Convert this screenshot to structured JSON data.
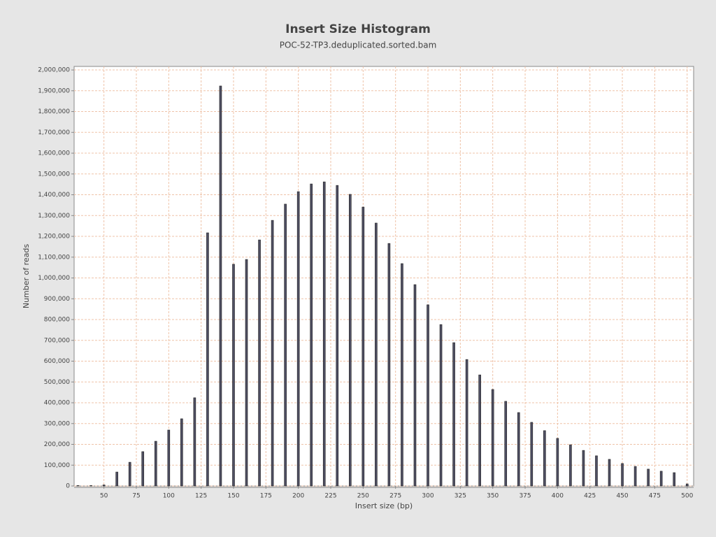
{
  "chart_data": {
    "type": "bar",
    "title": "Insert Size Histogram",
    "subtitle": "POC-52-TP3.deduplicated.sorted.bam",
    "x_label": "Insert size (bp)",
    "y_label": "Number of reads",
    "x": [
      30,
      40,
      50,
      60,
      70,
      80,
      90,
      100,
      110,
      120,
      130,
      140,
      150,
      160,
      170,
      180,
      190,
      200,
      210,
      220,
      230,
      240,
      250,
      260,
      270,
      280,
      290,
      300,
      310,
      320,
      330,
      340,
      350,
      360,
      370,
      380,
      390,
      400,
      410,
      420,
      430,
      440,
      450,
      460,
      470,
      480,
      490,
      500
    ],
    "values": [
      2000,
      2000,
      5000,
      67000,
      114000,
      165000,
      215000,
      269000,
      323000,
      424000,
      1217000,
      1923000,
      1066000,
      1089000,
      1183000,
      1277000,
      1355000,
      1415000,
      1452000,
      1462000,
      1445000,
      1402000,
      1341000,
      1264000,
      1166000,
      1069000,
      968000,
      871000,
      776000,
      689000,
      608000,
      534000,
      464000,
      407000,
      353000,
      306000,
      266000,
      229000,
      198000,
      171000,
      145000,
      128000,
      108000,
      94000,
      81000,
      71000,
      64000,
      10000
    ],
    "color": "#4f4f63",
    "xlim": [
      27,
      505
    ],
    "ylim": [
      0,
      2017000
    ],
    "xticks": [
      50,
      75,
      100,
      125,
      150,
      175,
      200,
      225,
      250,
      275,
      300,
      325,
      350,
      375,
      400,
      425,
      450,
      475,
      500
    ],
    "yticks": [
      0,
      {
        "value": 100000,
        "label": "100,000"
      },
      {
        "value": 200000,
        "label": "200,000"
      },
      {
        "value": 300000,
        "label": "300,000"
      },
      {
        "value": 400000,
        "label": "400,000"
      },
      {
        "value": 500000,
        "label": "500,000"
      },
      {
        "value": 600000,
        "label": "600,000"
      },
      {
        "value": 700000,
        "label": "700,000"
      },
      {
        "value": 800000,
        "label": "800,000"
      },
      {
        "value": 900000,
        "label": "900,000"
      },
      {
        "value": 1000000,
        "label": "1,000,000"
      },
      {
        "value": 1100000,
        "label": "1,100,000"
      },
      {
        "value": 1200000,
        "label": "1,200,000"
      },
      {
        "value": 1300000,
        "label": "1,300,000"
      },
      {
        "value": 1400000,
        "label": "1,400,000"
      },
      {
        "value": 1500000,
        "label": "1,500,000"
      },
      {
        "value": 1600000,
        "label": "1,600,000"
      },
      {
        "value": 1700000,
        "label": "1,700,000"
      },
      {
        "value": 1800000,
        "label": "1,800,000"
      },
      {
        "value": 1900000,
        "label": "1,900,000"
      },
      {
        "value": 2000000,
        "label": "2,000,000"
      }
    ],
    "grid": true
  }
}
